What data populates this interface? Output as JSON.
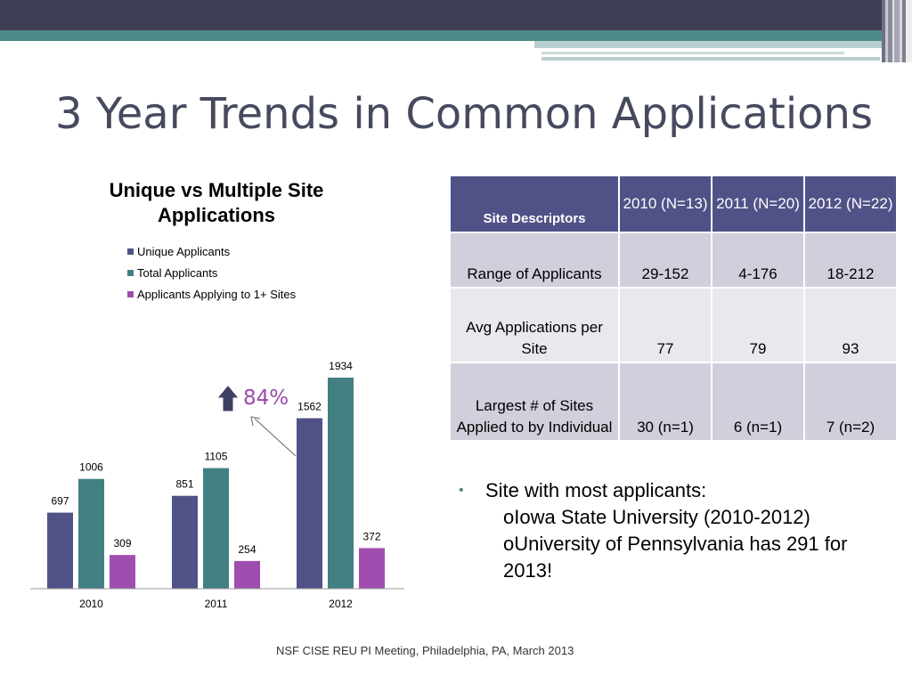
{
  "slide": {
    "title": "3 Year Trends in Common Applications",
    "footer": "NSF CISE REU PI Meeting, Philadelphia, PA, March 2013",
    "colors": {
      "header_dark": "#3e3f55",
      "header_teal": "#4d8a88"
    }
  },
  "chart_data": {
    "type": "bar",
    "title": "Unique vs Multiple Site Applications",
    "categories": [
      "2010",
      "2011",
      "2012"
    ],
    "series": [
      {
        "name": "Unique Applicants",
        "color": "#505287",
        "values": [
          697,
          851,
          1562
        ]
      },
      {
        "name": "Total Applicants",
        "color": "#428082",
        "values": [
          1006,
          1105,
          1934
        ]
      },
      {
        "name": "Applicants Applying to 1+ Sites",
        "color": "#a04db0",
        "values": [
          309,
          254,
          372
        ]
      }
    ],
    "ylim": [
      0,
      2200
    ],
    "grid": false,
    "legend": "top-left",
    "annotation": {
      "text": "84%",
      "icon": "up-arrow-icon"
    }
  },
  "table": {
    "header": [
      "Site Descriptors",
      "2010 (N=13)",
      "2011 (N=20)",
      "2012 (N=22)"
    ],
    "rows": [
      [
        "Range of Applicants",
        "29-152",
        "4-176",
        "18-212"
      ],
      [
        "Avg Applications per Site",
        "77",
        "79",
        "93"
      ],
      [
        "Largest # of Sites Applied to by Individual",
        "30 (n=1)",
        "6 (n=1)",
        "7 (n=2)"
      ]
    ]
  },
  "bullets": {
    "main": "Site with most applicants:",
    "sub": [
      "Iowa State University (2010-2012)",
      "University of Pennsylvania has 291 for 2013!"
    ]
  }
}
